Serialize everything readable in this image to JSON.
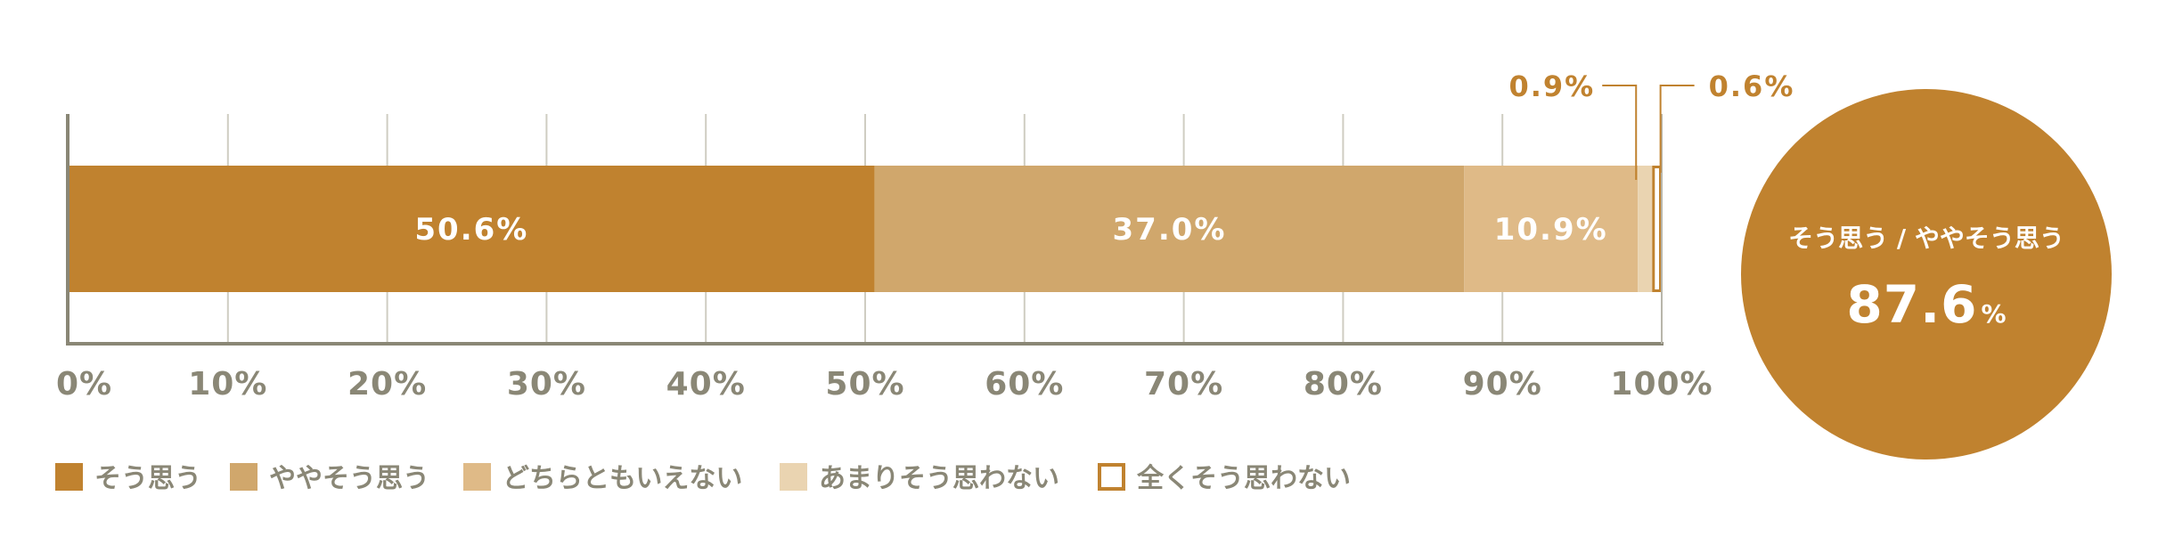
{
  "chart_data": {
    "type": "bar",
    "orientation": "horizontal-stacked",
    "xlim": [
      0,
      100
    ],
    "ticks": [
      "0%",
      "10%",
      "20%",
      "30%",
      "40%",
      "50%",
      "60%",
      "70%",
      "80%",
      "90%",
      "100%"
    ],
    "grid": true,
    "legend_placement": "bottom",
    "series": [
      {
        "name": "そう思う",
        "value": 50.6,
        "label": "50.6%",
        "color": "#c0822f",
        "fill": "solid"
      },
      {
        "name": "ややそう思う",
        "value": 37.0,
        "label": "37.0%",
        "color": "#d0a76c",
        "fill": "solid"
      },
      {
        "name": "どちらともいえない",
        "value": 10.9,
        "label": "10.9%",
        "color": "#dfba87",
        "fill": "solid"
      },
      {
        "name": "あまりそう思わない",
        "value": 0.9,
        "label": "0.9%",
        "color": "#ead4b1",
        "fill": "solid"
      },
      {
        "name": "全くそう思わない",
        "value": 0.6,
        "label": "0.6%",
        "color": "#c0822f",
        "fill": "outline"
      }
    ],
    "summary": {
      "label": "そう思う / ややそう思う",
      "value": "87.6",
      "unit": "%",
      "color": "#c0822f"
    }
  }
}
